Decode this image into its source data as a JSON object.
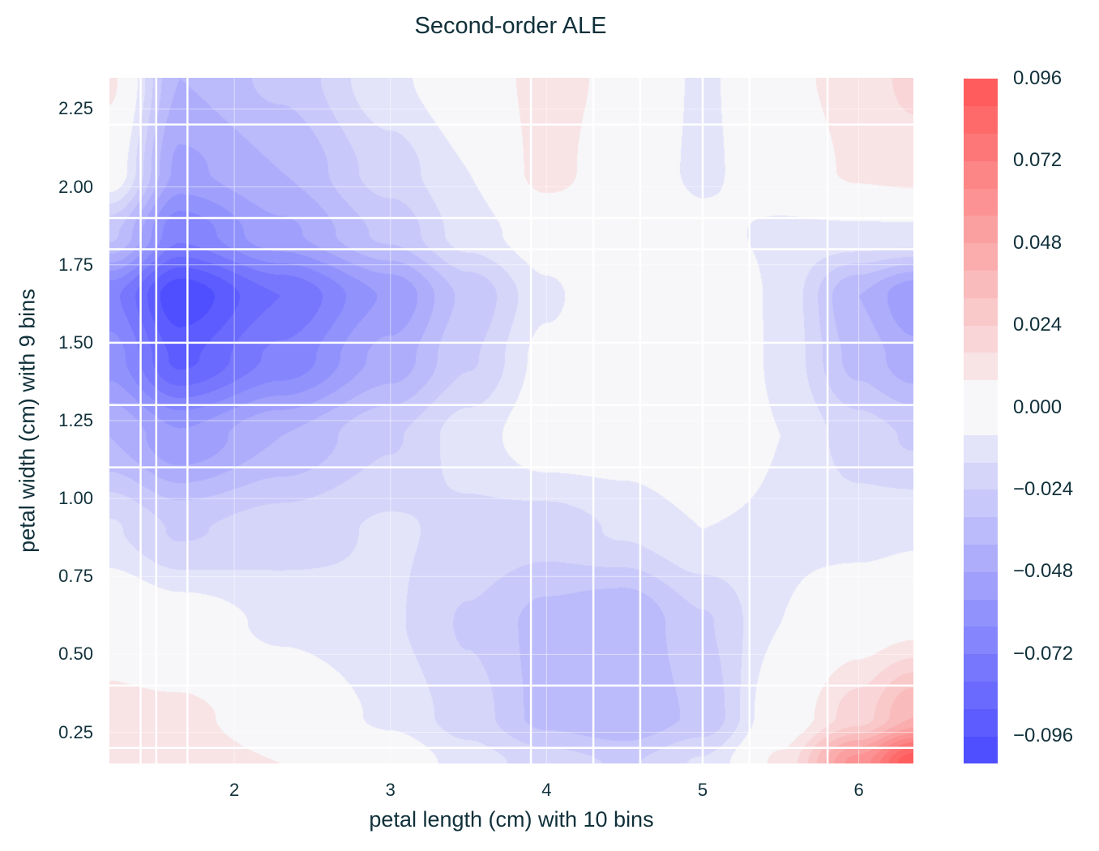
{
  "chart_data": {
    "type": "heatmap",
    "subtype": "filled-contour",
    "title": "Second-order ALE",
    "xlabel": "petal length (cm) with 10 bins",
    "ylabel": "petal width (cm) with 9 bins",
    "xlim": [
      1.2,
      6.35
    ],
    "ylim": [
      0.15,
      2.35
    ],
    "x_ticks": [
      2,
      3,
      4,
      5,
      6
    ],
    "x_tick_labels": [
      "2",
      "3",
      "4",
      "5",
      "6"
    ],
    "y_ticks": [
      0.25,
      0.5,
      0.75,
      1.0,
      1.25,
      1.5,
      1.75,
      2.0,
      2.25
    ],
    "y_tick_labels": [
      "0.25",
      "0.50",
      "0.75",
      "1.00",
      "1.25",
      "1.50",
      "1.75",
      "2.00",
      "2.25"
    ],
    "x_bin_edges": [
      1.4,
      1.5,
      1.7,
      3.9,
      4.3,
      4.6,
      5.0,
      5.3,
      5.8
    ],
    "y_bin_edges": [
      0.2,
      0.4,
      1.1,
      1.3,
      1.5,
      1.8,
      1.9,
      2.2
    ],
    "grid_x": [
      1.2,
      1.65,
      2.3,
      3.0,
      3.5,
      4.0,
      4.5,
      5.0,
      5.5,
      6.0,
      6.35
    ],
    "grid_y": [
      0.15,
      0.3,
      0.6,
      0.9,
      1.2,
      1.45,
      1.65,
      1.85,
      2.05,
      2.35
    ],
    "z": [
      [
        0.012,
        0.012,
        0.008,
        0.0,
        -0.012,
        -0.02,
        -0.025,
        -0.015,
        0.01,
        0.06,
        0.095
      ],
      [
        0.01,
        0.01,
        0.003,
        -0.01,
        -0.02,
        -0.035,
        -0.04,
        -0.03,
        0.0,
        0.02,
        0.04
      ],
      [
        0.004,
        -0.002,
        -0.01,
        -0.015,
        -0.025,
        -0.035,
        -0.04,
        -0.025,
        -0.008,
        0.002,
        0.005
      ],
      [
        -0.015,
        -0.025,
        -0.02,
        -0.015,
        -0.018,
        -0.02,
        -0.015,
        -0.008,
        -0.01,
        -0.012,
        -0.01
      ],
      [
        -0.04,
        -0.055,
        -0.04,
        -0.025,
        -0.012,
        -0.002,
        -0.002,
        0.004,
        -0.008,
        -0.02,
        -0.025
      ],
      [
        -0.06,
        -0.09,
        -0.07,
        -0.045,
        -0.025,
        -0.005,
        0.002,
        0.006,
        -0.01,
        -0.035,
        -0.045
      ],
      [
        -0.07,
        -0.102,
        -0.08,
        -0.055,
        -0.03,
        -0.01,
        0.004,
        0.005,
        -0.01,
        -0.04,
        -0.055
      ],
      [
        -0.03,
        -0.07,
        -0.05,
        -0.03,
        -0.012,
        -0.002,
        0.004,
        -0.005,
        -0.01,
        -0.01,
        -0.01
      ],
      [
        0.0,
        -0.05,
        -0.04,
        -0.02,
        -0.008,
        0.012,
        0.0,
        -0.01,
        0.0,
        0.01,
        0.012
      ],
      [
        0.01,
        -0.04,
        -0.03,
        -0.01,
        0.0,
        0.012,
        0.005,
        -0.01,
        0.005,
        0.012,
        0.018
      ]
    ],
    "colorbar": {
      "levels_min": -0.104,
      "levels_max": 0.096,
      "level_step": 0.008,
      "ticks": [
        0.096,
        0.072,
        0.048,
        0.024,
        0.0,
        -0.024,
        -0.048,
        -0.072,
        -0.096
      ],
      "tick_labels": [
        "0.096",
        "0.072",
        "0.048",
        "0.024",
        "0.000",
        "−0.024",
        "−0.048",
        "−0.072",
        "−0.096"
      ]
    },
    "colormap": {
      "negative": "#4f4fff",
      "zero": "#f7f7f9",
      "positive": "#ff4f4f"
    },
    "grid": true
  }
}
